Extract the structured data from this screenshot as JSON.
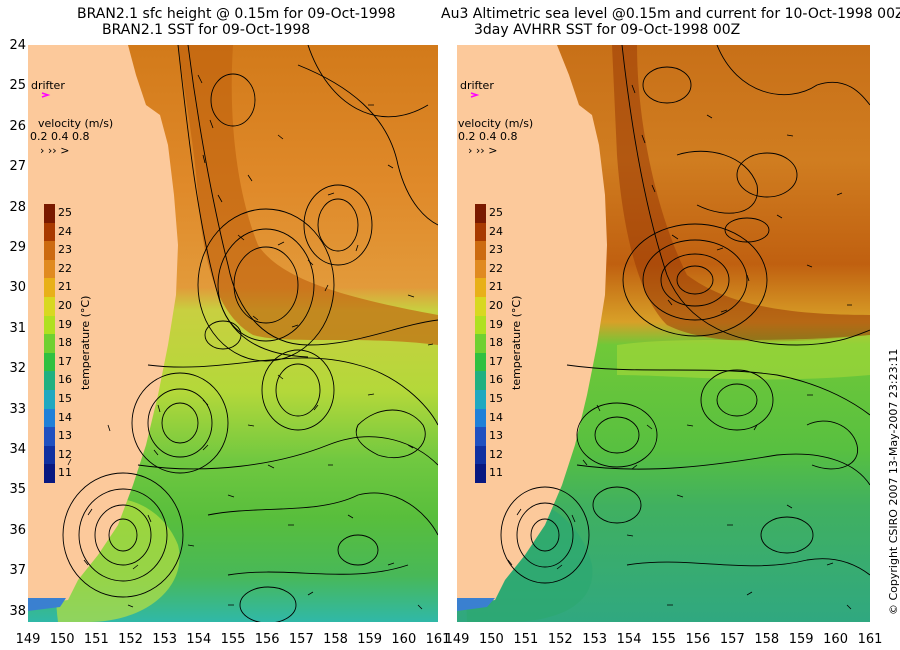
{
  "left_panel": {
    "title_line1": "BRAN2.1 sfc height @ 0.15m for 09-Oct-1998",
    "title_line2": "BRAN2.1 SST for 09-Oct-1998"
  },
  "right_panel": {
    "title_line1": "Au3 Altimetric sea level  @0.15m and current for 10-Oct-1998 00Z",
    "title_line2": "3day AVHRR SST for 09-Oct-1998 00Z"
  },
  "latitude_labels": [
    "24",
    "25",
    "26",
    "27",
    "28",
    "29",
    "30",
    "31",
    "32",
    "33",
    "34",
    "35",
    "36",
    "37",
    "38"
  ],
  "longitude_labels": [
    "149",
    "150",
    "151",
    "152",
    "153",
    "154",
    "155",
    "156",
    "157",
    "158",
    "159",
    "160",
    "161"
  ],
  "drifter_label": "drifter",
  "drifter_color": "#ff00ff",
  "velocity_legend": {
    "title": "velocity (m/s)",
    "values": [
      "0.2",
      "0.4",
      "0.8"
    ]
  },
  "colorbar": {
    "title": "temperature (°C)",
    "labels": [
      "25",
      "24",
      "23",
      "22",
      "21",
      "20",
      "19",
      "18",
      "17",
      "16",
      "15",
      "14",
      "13",
      "12",
      "11"
    ],
    "colors": [
      "#7a1a00",
      "#a83a00",
      "#cc6a10",
      "#e08a20",
      "#e8b018",
      "#d8d820",
      "#b0e020",
      "#70d030",
      "#30c040",
      "#20b080",
      "#20a8c0",
      "#2080d8",
      "#2050c0",
      "#1030a0",
      "#081880"
    ]
  },
  "land_color": "#fcc99b",
  "copyright": "© Copyright CSIRO 2007  13-May-2007 23:23:11"
}
